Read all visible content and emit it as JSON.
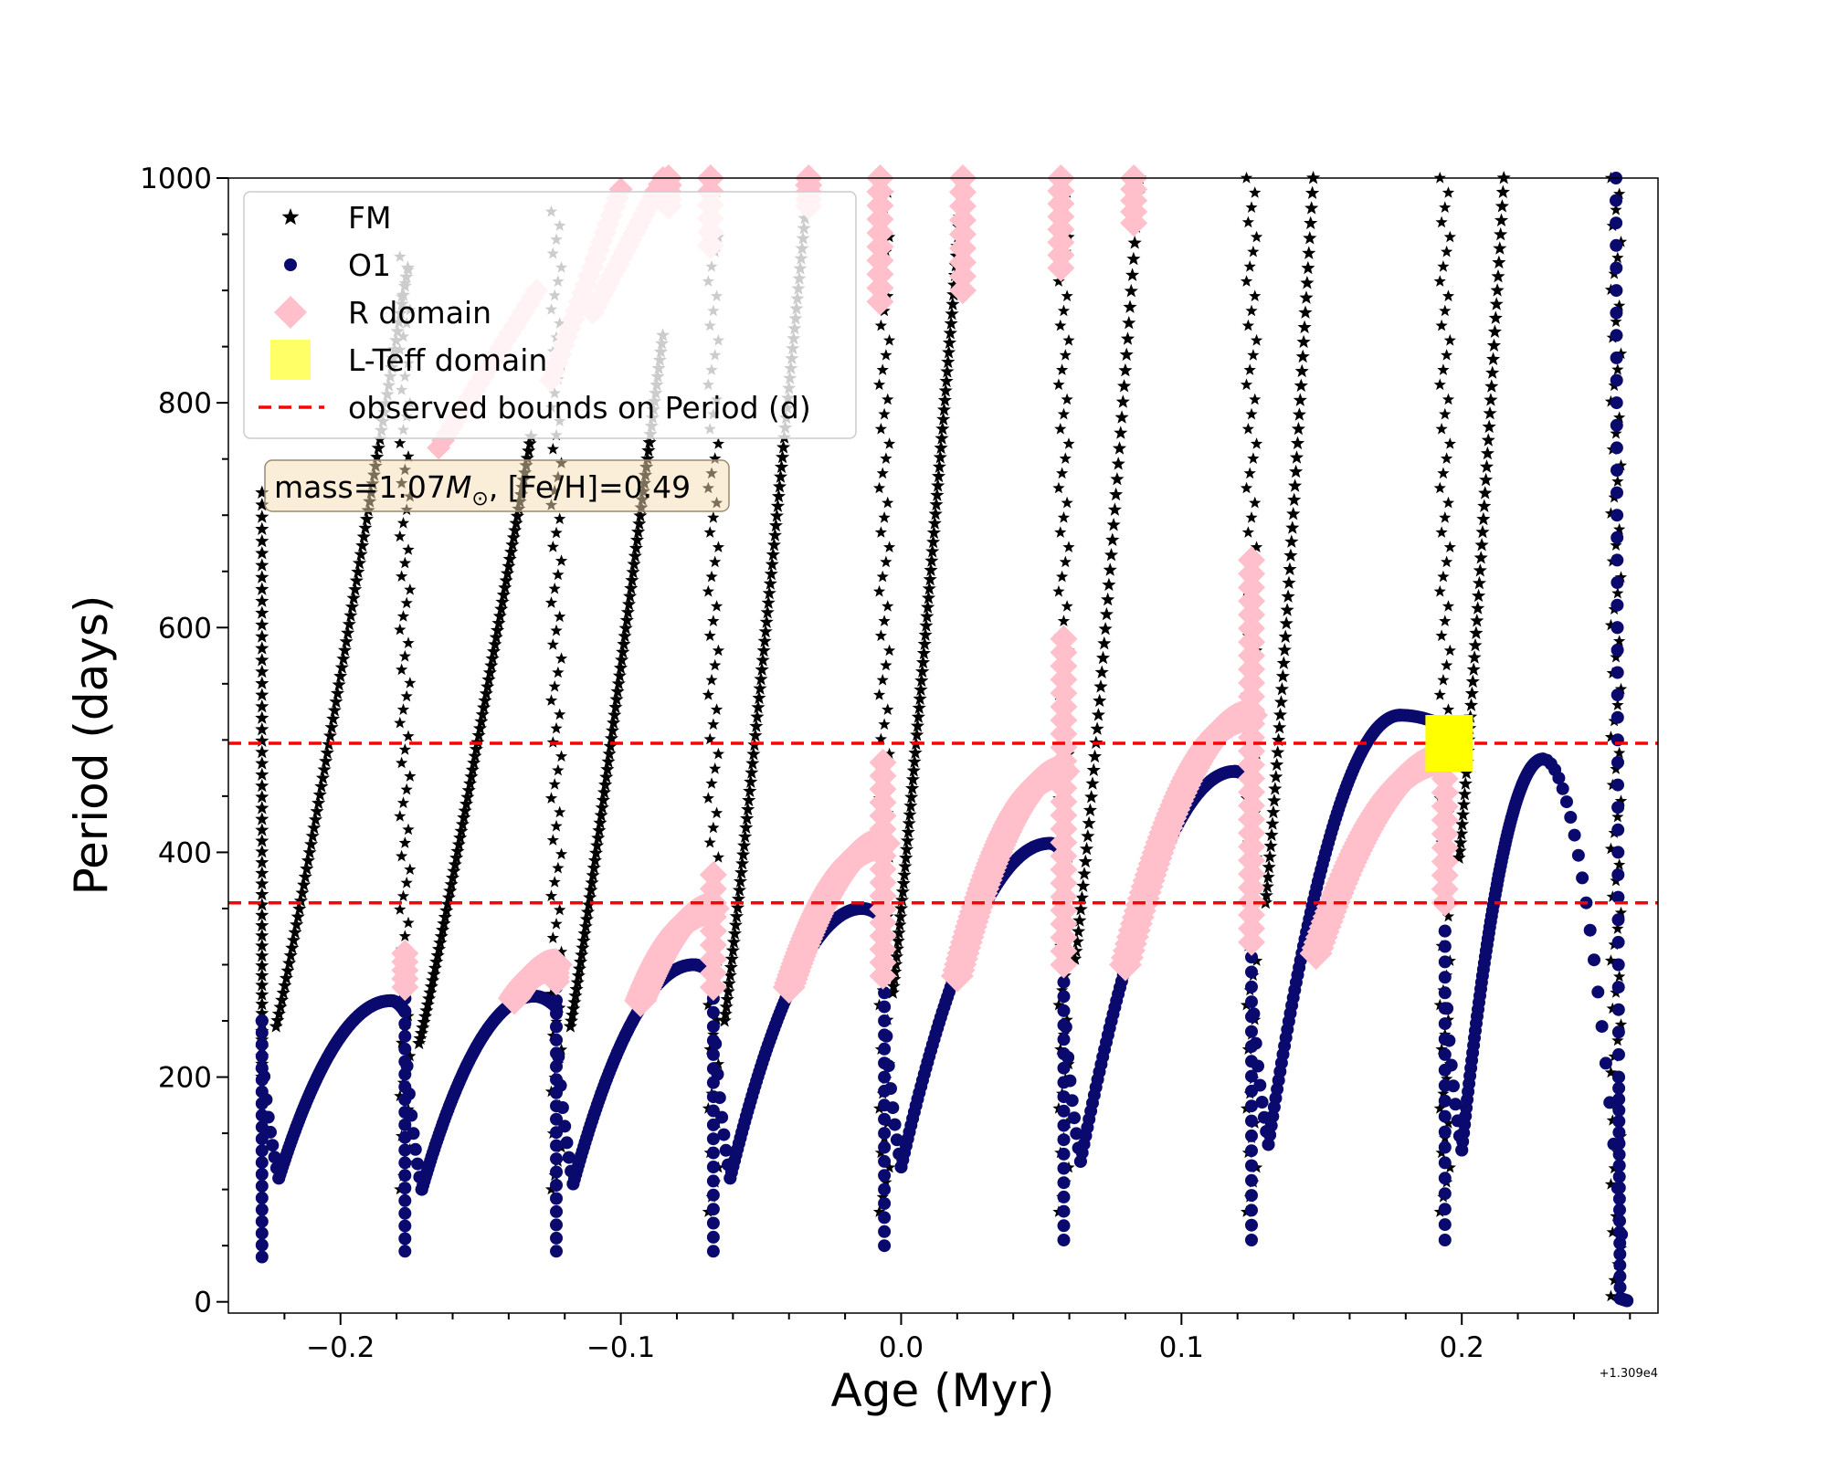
{
  "chart_data": {
    "type": "scatter",
    "title": "",
    "xlabel": "Age (Myr)",
    "ylabel": "Period (days)",
    "xlim": [
      -0.24,
      0.27
    ],
    "ylim": [
      -10,
      1000
    ],
    "x_offset_label": "+1.309e4",
    "x_ticks": [
      {
        "value": -0.2,
        "label": "−0.2"
      },
      {
        "value": -0.1,
        "label": "−0.1"
      },
      {
        "value": 0.0,
        "label": "0.0"
      },
      {
        "value": 0.1,
        "label": "0.1"
      },
      {
        "value": 0.2,
        "label": "0.2"
      }
    ],
    "y_ticks": [
      {
        "value": 0,
        "label": "0"
      },
      {
        "value": 200,
        "label": "200"
      },
      {
        "value": 400,
        "label": "400"
      },
      {
        "value": 600,
        "label": "600"
      },
      {
        "value": 800,
        "label": "800"
      },
      {
        "value": 1000,
        "label": "1000"
      }
    ],
    "legend": {
      "placement": "upper-left",
      "entries": [
        {
          "label": "FM",
          "marker": "star",
          "color": "#000000"
        },
        {
          "label": "O1",
          "marker": "circle",
          "color": "#0a0a6e"
        },
        {
          "label": "R domain",
          "marker": "diamond",
          "color": "#ffc0cb"
        },
        {
          "label": "L-Teff domain",
          "marker": "square",
          "color": "#ffff00"
        },
        {
          "label": "observed bounds on Period (d)",
          "marker": "dashed-line",
          "color": "#ff0000"
        }
      ]
    },
    "annotation": {
      "text_prefix": "mass=1.07",
      "text_symbol": "M",
      "text_sub": "⊙",
      "text_suffix": ", [Fe/H]=0.49"
    },
    "hlines": [
      {
        "name": "observed bounds on Period (d)",
        "y": 355,
        "color": "#ff0000",
        "style": "dashed"
      },
      {
        "name": "observed bounds on Period (d)",
        "y": 497,
        "color": "#ff0000",
        "style": "dashed"
      }
    ],
    "o1_pulses": [
      {
        "tp": -0.228,
        "min": 40,
        "spike": 250,
        "min_after": 110,
        "peak": 268,
        "tpeak": -0.182,
        "tnext": -0.177
      },
      {
        "tp": -0.177,
        "min": 45,
        "spike": 270,
        "min_after": 100,
        "peak": 272,
        "tpeak": -0.131,
        "tnext": -0.123
      },
      {
        "tp": -0.123,
        "min": 45,
        "spike": 280,
        "min_after": 105,
        "peak": 300,
        "tpeak": -0.074,
        "tnext": -0.067
      },
      {
        "tp": -0.067,
        "min": 45,
        "spike": 295,
        "min_after": 110,
        "peak": 350,
        "tpeak": -0.014,
        "tnext": -0.006
      },
      {
        "tp": -0.006,
        "min": 50,
        "spike": 300,
        "min_after": 120,
        "peak": 408,
        "tpeak": 0.053,
        "tnext": 0.058
      },
      {
        "tp": 0.058,
        "min": 55,
        "spike": 310,
        "min_after": 125,
        "peak": 472,
        "tpeak": 0.119,
        "tnext": 0.125
      },
      {
        "tp": 0.125,
        "min": 55,
        "spike": 320,
        "min_after": 140,
        "peak": 522,
        "tpeak": 0.178,
        "tnext": 0.194
      },
      {
        "tp": 0.194,
        "min": 55,
        "spike": 330,
        "min_after": 135,
        "peak": 483,
        "tpeak": 0.229,
        "tnext": 0.257
      }
    ],
    "r_domain_segments": [
      {
        "t0": -0.138,
        "t1": -0.123,
        "p0": 270,
        "p1": 300
      },
      {
        "t0": -0.093,
        "t1": -0.067,
        "p0": 268,
        "p1": 350
      },
      {
        "t0": -0.04,
        "t1": -0.006,
        "p0": 280,
        "p1": 408
      },
      {
        "t0": 0.02,
        "t1": 0.058,
        "p0": 290,
        "p1": 472
      },
      {
        "t0": 0.08,
        "t1": 0.125,
        "p0": 300,
        "p1": 522
      },
      {
        "t0": 0.148,
        "t1": 0.194,
        "p0": 310,
        "p1": 483
      }
    ],
    "r_domain_vertical_bands": [
      {
        "t": -0.177,
        "p0": 280,
        "p1": 310
      },
      {
        "t": -0.123,
        "p0": 285,
        "p1": 300
      },
      {
        "t": -0.067,
        "p0": 280,
        "p1": 380
      },
      {
        "t": -0.0065,
        "p0": 290,
        "p1": 480
      },
      {
        "t": 0.058,
        "p0": 300,
        "p1": 590
      },
      {
        "t": 0.125,
        "p0": 320,
        "p1": 660
      },
      {
        "t": 0.194,
        "p0": 355,
        "p1": 490
      },
      {
        "t": -0.0075,
        "p0": 890,
        "p1": 1000
      },
      {
        "t": 0.022,
        "p0": 900,
        "p1": 1000
      },
      {
        "t": 0.057,
        "p0": 920,
        "p1": 1000
      },
      {
        "t": 0.083,
        "p0": 960,
        "p1": 1000
      },
      {
        "t": -0.033,
        "p0": 975,
        "p1": 1000
      },
      {
        "t": -0.068,
        "p0": 940,
        "p1": 1000
      },
      {
        "t": -0.083,
        "p0": 975,
        "p1": 1000
      }
    ],
    "r_domain_fm_bands": [
      {
        "t0": -0.165,
        "t1": -0.13,
        "p0": 760,
        "p1": 900
      },
      {
        "t0": -0.125,
        "t1": -0.1,
        "p0": 820,
        "p1": 990
      },
      {
        "t0": -0.11,
        "t1": -0.085,
        "p0": 880,
        "p1": 1000
      }
    ],
    "fm_dense_branches": [
      {
        "t0": -0.223,
        "t1": -0.176,
        "p0": 245,
        "p1": 920
      },
      {
        "t0": -0.172,
        "t1": -0.132,
        "p0": 230,
        "p1": 770
      },
      {
        "t0": -0.118,
        "t1": -0.085,
        "p0": 245,
        "p1": 860
      },
      {
        "t0": -0.063,
        "t1": -0.033,
        "p0": 250,
        "p1": 1000
      },
      {
        "t0": -0.003,
        "t1": 0.022,
        "p0": 275,
        "p1": 1000
      }
    ],
    "fm_sparse_branches": [
      {
        "t0": -0.228,
        "t1": -0.228,
        "p0": 200,
        "p1": 720
      },
      {
        "t0": 0.062,
        "t1": 0.085,
        "p0": 305,
        "p1": 1000
      },
      {
        "t0": 0.13,
        "t1": 0.147,
        "p0": 355,
        "p1": 1000
      },
      {
        "t0": 0.199,
        "t1": 0.215,
        "p0": 395,
        "p1": 1000
      }
    ],
    "fm_vertical_strands": [
      {
        "t": -0.177,
        "p0": 100,
        "p1": 930
      },
      {
        "t": -0.123,
        "p0": 100,
        "p1": 970
      },
      {
        "t": -0.067,
        "p0": 80,
        "p1": 1000
      },
      {
        "t": -0.006,
        "p0": 80,
        "p1": 1000
      },
      {
        "t": 0.058,
        "p0": 80,
        "p1": 1000
      },
      {
        "t": 0.125,
        "p0": 80,
        "p1": 1000
      },
      {
        "t": 0.194,
        "p0": 80,
        "p1": 1000
      },
      {
        "t": 0.255,
        "p0": 5,
        "p1": 1000
      }
    ],
    "o1_final_drop": [
      {
        "t": 0.255,
        "p": 1000
      },
      {
        "t": 0.2555,
        "p": 600
      },
      {
        "t": 0.256,
        "p": 200
      },
      {
        "t": 0.2565,
        "p": 3
      },
      {
        "t": 0.259,
        "p": 1
      }
    ],
    "l_teff_domain": [
      {
        "t": 0.1955,
        "p": 497
      }
    ]
  }
}
